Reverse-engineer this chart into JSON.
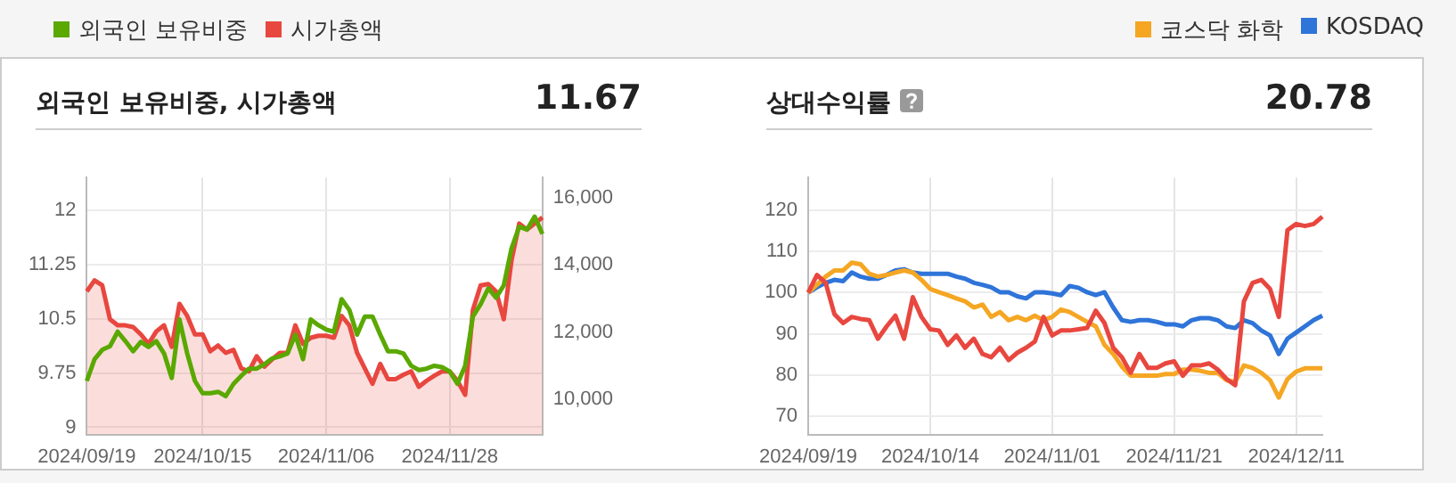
{
  "chart_data": [
    {
      "type": "line",
      "title": "외국인 보유비중, 시가총액",
      "annotations": [
        "11.67"
      ],
      "legend": "top left",
      "grid": true,
      "marker": "none",
      "categories": [
        "2024/09/19",
        null,
        null,
        null,
        null,
        null,
        null,
        null,
        null,
        null,
        null,
        null,
        null,
        null,
        null,
        "2024/10/15",
        null,
        null,
        null,
        null,
        null,
        null,
        null,
        null,
        null,
        null,
        null,
        null,
        null,
        null,
        null,
        "2024/11/06",
        null,
        null,
        null,
        null,
        null,
        null,
        null,
        null,
        null,
        null,
        null,
        null,
        null,
        null,
        null,
        "2024/11/28",
        null,
        null,
        null,
        null,
        null,
        null,
        null,
        null,
        null,
        null,
        null,
        null
      ],
      "ylim": [
        8.9,
        12.45
      ],
      "yticks": [
        9,
        9.75,
        10.5,
        11.25,
        12
      ],
      "y2lim": [
        8950,
        16600
      ],
      "y2ticks": [
        {
          "value": 10000,
          "label": "10,000"
        },
        {
          "value": 12000,
          "label": "12,000"
        },
        {
          "value": 14000,
          "label": "14,000"
        },
        {
          "value": 16000,
          "label": "16,000"
        }
      ],
      "series": [
        {
          "name": "외국인 보유비중",
          "type": "line",
          "axis": "y",
          "color": "#5aa800",
          "values": [
            9.64,
            9.94,
            10.07,
            10.12,
            10.32,
            10.19,
            10.05,
            10.18,
            10.11,
            10.19,
            10.02,
            9.68,
            10.49,
            10.02,
            9.64,
            9.47,
            9.47,
            9.49,
            9.43,
            9.6,
            9.71,
            9.81,
            9.81,
            9.87,
            9.95,
            9.98,
            10.02,
            10.28,
            9.94,
            10.49,
            10.41,
            10.35,
            10.32,
            10.77,
            10.62,
            10.28,
            10.53,
            10.53,
            10.28,
            10.05,
            10.05,
            10.02,
            9.85,
            9.79,
            9.81,
            9.85,
            9.83,
            9.77,
            9.6,
            9.85,
            10.53,
            10.7,
            10.92,
            10.79,
            10.96,
            11.47,
            11.77,
            11.73,
            11.91,
            11.67
          ]
        },
        {
          "name": "시가총액",
          "type": "area",
          "axis": "y2",
          "color": "#e8473f",
          "values": [
            13210,
            13540,
            13390,
            12380,
            12200,
            12200,
            12150,
            11930,
            11650,
            12020,
            12200,
            11560,
            12840,
            12480,
            11930,
            11930,
            11430,
            11600,
            11380,
            11470,
            10920,
            10830,
            11280,
            10970,
            11190,
            11380,
            11380,
            12200,
            11650,
            11830,
            11890,
            11890,
            11830,
            12480,
            12200,
            11380,
            10920,
            10460,
            11050,
            10600,
            10600,
            10730,
            10830,
            10370,
            10550,
            10700,
            10830,
            10830,
            10550,
            10130,
            12660,
            13390,
            13430,
            13210,
            12380,
            14130,
            15230,
            15050,
            15230,
            15410
          ]
        }
      ]
    },
    {
      "type": "line",
      "title": "상대수익률",
      "annotations": [
        "20.78"
      ],
      "legend": "top right",
      "grid": true,
      "marker": "none",
      "categories": [
        "2024/09/19",
        null,
        null,
        null,
        null,
        null,
        null,
        null,
        null,
        null,
        null,
        null,
        null,
        null,
        "2024/10/14",
        null,
        null,
        null,
        null,
        null,
        null,
        null,
        null,
        null,
        null,
        null,
        null,
        null,
        "2024/11/01",
        null,
        null,
        null,
        null,
        null,
        null,
        null,
        null,
        null,
        null,
        null,
        null,
        null,
        "2024/11/21",
        null,
        null,
        null,
        null,
        null,
        null,
        null,
        null,
        null,
        null,
        null,
        null,
        null,
        "2024/12/11",
        null,
        null,
        null
      ],
      "ylim": [
        65.5,
        128
      ],
      "yticks": [
        70,
        80,
        90,
        100,
        110,
        120
      ],
      "series": [
        {
          "color": "#e8473f",
          "values": [
            100,
            104.3,
            102.4,
            94.8,
            92.6,
            94.1,
            93.6,
            93.3,
            88.8,
            91.8,
            94.4,
            88.8,
            98.9,
            94.1,
            91.1,
            90.8,
            87.3,
            89.6,
            86.6,
            88.8,
            85.1,
            84.3,
            86.6,
            83.6,
            85.4,
            86.6,
            88.1,
            94.1,
            89.6,
            90.8,
            90.8,
            91.1,
            91.4,
            95.6,
            92.6,
            86.6,
            84.3,
            80.5,
            85.1,
            81.7,
            81.7,
            82.8,
            83.3,
            79.8,
            82.3,
            82.3,
            82.8,
            81.3,
            79,
            77.5,
            97.9,
            102.4,
            103.1,
            100.9,
            94.1,
            115.2,
            116.7,
            116.2,
            116.7,
            118.5
          ]
        },
        {
          "name": "코스닥 화학",
          "color": "#f5a623",
          "values": [
            100,
            101.9,
            103.9,
            105.4,
            105.4,
            107.3,
            106.9,
            104.6,
            103.9,
            104.3,
            104.9,
            105.4,
            104.9,
            103.1,
            100.9,
            100.1,
            99.4,
            98.6,
            97.9,
            96.4,
            97.1,
            94.1,
            95.3,
            93.3,
            94.1,
            93.3,
            94.4,
            93.3,
            94.1,
            95.9,
            95.3,
            94.1,
            92.9,
            91.8,
            87.3,
            85.1,
            82,
            79.8,
            79.8,
            79.8,
            79.8,
            80.2,
            80.2,
            81.3,
            81.3,
            81,
            80.5,
            80.5,
            78.7,
            78.3,
            82.3,
            81.7,
            80.5,
            78.7,
            74.5,
            79,
            80.8,
            81.6,
            81.6,
            81.6
          ]
        },
        {
          "name": "KOSDAQ",
          "color": "#2f74d8",
          "values": [
            100,
            101.3,
            102.4,
            103.1,
            102.8,
            104.9,
            103.9,
            103.4,
            103.4,
            104.3,
            105.4,
            105.7,
            104.9,
            104.6,
            104.6,
            104.6,
            104.6,
            103.9,
            103.4,
            102.4,
            101.9,
            101.3,
            100.1,
            100.1,
            99.1,
            98.6,
            100.1,
            100.1,
            99.8,
            99.4,
            101.6,
            101.2,
            100.1,
            99.4,
            100.1,
            96.4,
            93.3,
            92.9,
            93.3,
            93.3,
            92.9,
            92.3,
            92.3,
            91.8,
            93.3,
            93.8,
            93.8,
            93.3,
            91.8,
            91.4,
            93.3,
            92.6,
            90.8,
            89.6,
            85.1,
            88.8,
            90.3,
            91.8,
            93.3,
            94.4
          ]
        }
      ]
    }
  ]
}
